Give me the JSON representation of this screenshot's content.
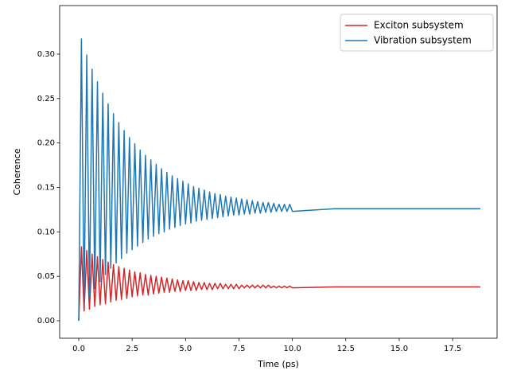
{
  "chart_data": {
    "type": "line",
    "xlabel": "Time (ps)",
    "ylabel": "Coherence",
    "x": [
      0,
      0.125,
      0.25,
      0.375,
      0.5,
      0.625,
      0.75,
      0.875,
      1,
      1.125,
      1.25,
      1.375,
      1.5,
      1.625,
      1.75,
      1.875,
      2,
      2.125,
      2.25,
      2.375,
      2.5,
      2.625,
      2.75,
      2.875,
      3,
      3.125,
      3.25,
      3.375,
      3.5,
      3.625,
      3.75,
      3.875,
      4,
      4.125,
      4.25,
      4.375,
      4.5,
      4.625,
      4.75,
      4.875,
      5,
      5.125,
      5.25,
      5.375,
      5.5,
      5.625,
      5.75,
      5.875,
      6,
      6.125,
      6.25,
      6.375,
      6.5,
      6.625,
      6.75,
      6.875,
      7,
      7.125,
      7.25,
      7.375,
      7.5,
      7.625,
      7.75,
      7.875,
      8,
      8.125,
      8.25,
      8.375,
      8.5,
      8.625,
      8.75,
      8.875,
      9,
      9.125,
      9.25,
      9.375,
      9.5,
      9.625,
      9.75,
      9.875,
      10,
      12,
      15,
      18.8
    ],
    "series": [
      {
        "name": "Exciton subsystem",
        "color": "#d62728",
        "values": [
          0,
          0.083,
          0.011,
          0.079,
          0.013,
          0.075,
          0.016,
          0.072,
          0.018,
          0.069,
          0.019,
          0.066,
          0.021,
          0.063,
          0.023,
          0.061,
          0.024,
          0.059,
          0.025,
          0.057,
          0.027,
          0.055,
          0.028,
          0.054,
          0.029,
          0.052,
          0.029,
          0.051,
          0.03,
          0.05,
          0.031,
          0.049,
          0.032,
          0.048,
          0.032,
          0.047,
          0.033,
          0.046,
          0.033,
          0.045,
          0.034,
          0.045,
          0.034,
          0.044,
          0.034,
          0.043,
          0.035,
          0.043,
          0.035,
          0.042,
          0.035,
          0.042,
          0.036,
          0.042,
          0.036,
          0.041,
          0.036,
          0.041,
          0.036,
          0.041,
          0.036,
          0.04,
          0.037,
          0.04,
          0.037,
          0.04,
          0.037,
          0.04,
          0.037,
          0.04,
          0.037,
          0.04,
          0.037,
          0.039,
          0.037,
          0.039,
          0.037,
          0.039,
          0.037,
          0.039,
          0.037,
          0.038,
          0.038,
          0.038
        ]
      },
      {
        "name": "Vibration subsystem",
        "color": "#1f77b4",
        "values": [
          0,
          0.317,
          0.017,
          0.299,
          0.027,
          0.283,
          0.036,
          0.269,
          0.044,
          0.256,
          0.052,
          0.244,
          0.059,
          0.233,
          0.065,
          0.223,
          0.07,
          0.214,
          0.076,
          0.206,
          0.08,
          0.199,
          0.084,
          0.192,
          0.088,
          0.186,
          0.092,
          0.181,
          0.095,
          0.176,
          0.098,
          0.171,
          0.1,
          0.167,
          0.103,
          0.163,
          0.105,
          0.16,
          0.107,
          0.157,
          0.109,
          0.154,
          0.11,
          0.151,
          0.112,
          0.149,
          0.113,
          0.147,
          0.114,
          0.145,
          0.115,
          0.143,
          0.116,
          0.142,
          0.117,
          0.14,
          0.118,
          0.139,
          0.119,
          0.138,
          0.119,
          0.137,
          0.12,
          0.136,
          0.12,
          0.135,
          0.121,
          0.134,
          0.121,
          0.133,
          0.122,
          0.133,
          0.122,
          0.132,
          0.123,
          0.131,
          0.123,
          0.131,
          0.123,
          0.131,
          0.123,
          0.126,
          0.126,
          0.126
        ]
      }
    ],
    "xlim": [
      -0.894,
      19.58
    ],
    "ylim": [
      -0.0197,
      0.3546
    ],
    "xticks": [
      {
        "value": 0,
        "label": "0.0"
      },
      2.5,
      {
        "value": 5,
        "label": "5.0"
      },
      7.5,
      {
        "value": 10,
        "label": "10.0"
      },
      12.5,
      {
        "value": 15,
        "label": "15.0"
      },
      17.5
    ],
    "yticks": [
      {
        "value": 0,
        "label": "0.00"
      },
      {
        "value": 0.05,
        "label": "0.05"
      },
      {
        "value": 0.1,
        "label": "0.10"
      },
      {
        "value": 0.15,
        "label": "0.15"
      },
      {
        "value": 0.2,
        "label": "0.20"
      },
      {
        "value": 0.25,
        "label": "0.25"
      },
      {
        "value": 0.3,
        "label": "0.30"
      }
    ],
    "legend": "upper right",
    "grid": false
  }
}
